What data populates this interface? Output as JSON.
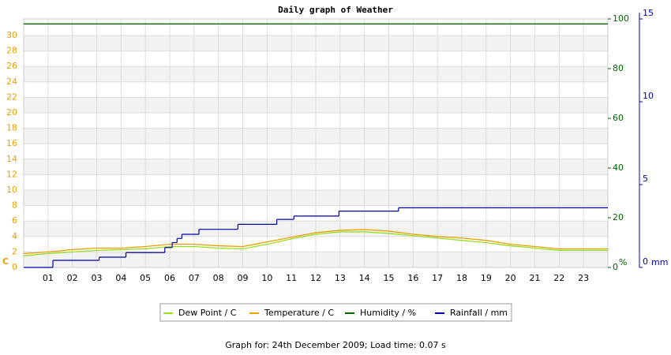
{
  "chart_data": {
    "type": "line",
    "title": "Daily graph of Weather",
    "footer": "Graph for: 24th December 2009; Load time: 0.07 s",
    "ylabel": "C",
    "y2label": "%",
    "y3label": "mm",
    "xlim": [
      0,
      24
    ],
    "xticks": [
      {
        "value": 1,
        "label": "01"
      },
      {
        "value": 2,
        "label": "02"
      },
      {
        "value": 3,
        "label": "03"
      },
      {
        "value": 4,
        "label": "04"
      },
      {
        "value": 5,
        "label": "05"
      },
      {
        "value": 6,
        "label": "06"
      },
      {
        "value": 7,
        "label": "07"
      },
      {
        "value": 8,
        "label": "08"
      },
      {
        "value": 9,
        "label": "09"
      },
      {
        "value": 10,
        "label": "10"
      },
      {
        "value": 11,
        "label": "11"
      },
      {
        "value": 12,
        "label": "12"
      },
      {
        "value": 13,
        "label": "13"
      },
      {
        "value": 14,
        "label": "14"
      },
      {
        "value": 15,
        "label": "15"
      },
      {
        "value": 16,
        "label": "16"
      },
      {
        "value": 17,
        "label": "17"
      },
      {
        "value": 18,
        "label": "18"
      },
      {
        "value": 19,
        "label": "19"
      },
      {
        "value": 20,
        "label": "20"
      },
      {
        "value": 21,
        "label": "21"
      },
      {
        "value": 22,
        "label": "22"
      },
      {
        "value": 23,
        "label": "23"
      }
    ],
    "ylim": [
      0,
      32.14
    ],
    "yticks": [
      0,
      2,
      4,
      6,
      8,
      10,
      12,
      14,
      16,
      18,
      20,
      22,
      24,
      26,
      28,
      30
    ],
    "y2lim": [
      0,
      100
    ],
    "y2ticks": [
      0,
      20,
      40,
      60,
      80,
      100
    ],
    "y3lim": [
      0,
      15
    ],
    "y3ticks": [
      0,
      5,
      10,
      15
    ],
    "grid": true,
    "x": [
      0,
      1,
      2,
      3,
      4,
      5,
      6,
      7,
      8,
      9,
      10,
      11,
      12,
      13,
      14,
      15,
      16,
      17,
      18,
      19,
      20,
      21,
      22,
      23,
      24
    ],
    "series": [
      {
        "name": "Dew Point / C",
        "color": "#99dd22",
        "axis": "y",
        "values": [
          1.5,
          1.8,
          2.0,
          2.2,
          2.3,
          2.4,
          2.7,
          2.7,
          2.5,
          2.4,
          3.0,
          3.7,
          4.3,
          4.6,
          4.6,
          4.4,
          4.1,
          3.8,
          3.5,
          3.2,
          2.8,
          2.5,
          2.2,
          2.2,
          2.2
        ]
      },
      {
        "name": "Temperature / C",
        "color": "#e8a000",
        "axis": "y",
        "values": [
          1.8,
          2.0,
          2.3,
          2.5,
          2.5,
          2.7,
          3.0,
          3.0,
          2.8,
          2.7,
          3.3,
          3.9,
          4.5,
          4.8,
          4.9,
          4.7,
          4.3,
          4.0,
          3.8,
          3.5,
          3.0,
          2.7,
          2.4,
          2.4,
          2.4
        ]
      },
      {
        "name": "Humidity / %",
        "color": "#006400",
        "axis": "y2",
        "values": [
          98,
          98,
          98,
          98,
          98,
          98,
          98,
          98,
          98,
          98,
          98,
          98,
          98,
          98,
          98,
          98,
          98,
          98,
          98,
          98,
          98,
          98,
          98,
          98,
          98
        ]
      },
      {
        "name": "Rainfall / mm",
        "color": "#0000aa",
        "axis": "y3",
        "step": true,
        "x": [
          0,
          1.2,
          3.1,
          4.2,
          5.8,
          6.1,
          6.3,
          6.5,
          7.2,
          8.8,
          10.4,
          11.1,
          12.95,
          15.4
        ],
        "values": [
          0,
          0.43,
          0.62,
          0.9,
          1.2,
          1.5,
          1.75,
          2.0,
          2.3,
          2.6,
          2.9,
          3.1,
          3.4,
          3.6
        ]
      }
    ]
  }
}
